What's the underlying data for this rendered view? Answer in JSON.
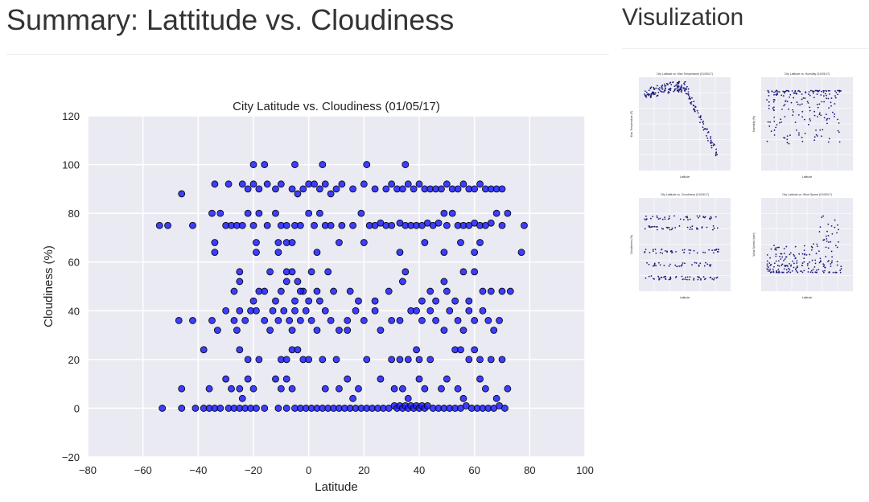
{
  "header": {
    "title": "Summary: Lattitude vs. Cloudiness"
  },
  "sidebar": {
    "title": "Visulization",
    "thumbnails": [
      {
        "name": "temperature",
        "title": "City Latitude vs. Max Temperature (01/05/17)",
        "ylabel": "Max Temperature (F)",
        "xlabel": "Latitude"
      },
      {
        "name": "humidity",
        "title": "City Latitude vs. Humidity (01/05/17)",
        "ylabel": "Humidity (%)",
        "xlabel": "Latitude"
      },
      {
        "name": "cloudiness",
        "title": "City Latitude vs. Cloudiness (01/05/17)",
        "ylabel": "Cloudiness (%)",
        "xlabel": "Latitude"
      },
      {
        "name": "wind-speed",
        "title": "City Latitude vs. Wind Speed (01/05/17)",
        "ylabel": "Wind Speed (mph)",
        "xlabel": "Latitude"
      }
    ]
  },
  "chart_data": {
    "type": "scatter",
    "title": "City Latitude vs. Cloudiness (01/05/17)",
    "xlabel": "Latitude",
    "ylabel": "Cloudiness (%)",
    "xlim": [
      -80,
      100
    ],
    "ylim": [
      -20,
      120
    ],
    "xticks": [
      -80,
      -60,
      -40,
      -20,
      0,
      20,
      40,
      60,
      80,
      100
    ],
    "yticks": [
      -20,
      0,
      20,
      40,
      60,
      80,
      100,
      120
    ],
    "grid": true,
    "style": {
      "background": "#eaeaf2",
      "grid": "#ffffff",
      "marker": "#1f1fff",
      "marker_edge": "#000000"
    },
    "series": [
      {
        "points": [
          [
            -54,
            75
          ],
          [
            -51,
            75
          ],
          [
            -42,
            75
          ],
          [
            -35,
            80
          ],
          [
            -32,
            80
          ],
          [
            -30,
            75
          ],
          [
            -28,
            75
          ],
          [
            -26,
            75
          ],
          [
            -24,
            75
          ],
          [
            -22,
            80
          ],
          [
            -20,
            75
          ],
          [
            -18,
            80
          ],
          [
            -15,
            75
          ],
          [
            -12,
            80
          ],
          [
            -10,
            75
          ],
          [
            -8,
            75
          ],
          [
            -5,
            75
          ],
          [
            -3,
            75
          ],
          [
            0,
            80
          ],
          [
            2,
            75
          ],
          [
            4,
            80
          ],
          [
            6,
            75
          ],
          [
            8,
            75
          ],
          [
            12,
            75
          ],
          [
            16,
            75
          ],
          [
            19,
            80
          ],
          [
            22,
            75
          ],
          [
            24,
            75
          ],
          [
            26,
            76
          ],
          [
            28,
            75
          ],
          [
            30,
            75
          ],
          [
            33,
            76
          ],
          [
            35,
            75
          ],
          [
            37,
            75
          ],
          [
            39,
            75
          ],
          [
            41,
            75
          ],
          [
            43,
            76
          ],
          [
            45,
            75
          ],
          [
            47,
            76
          ],
          [
            49,
            80
          ],
          [
            50,
            75
          ],
          [
            52,
            80
          ],
          [
            54,
            75
          ],
          [
            56,
            75
          ],
          [
            58,
            75
          ],
          [
            60,
            76
          ],
          [
            62,
            75
          ],
          [
            64,
            75
          ],
          [
            66,
            76
          ],
          [
            68,
            80
          ],
          [
            70,
            75
          ],
          [
            72,
            80
          ],
          [
            78,
            75
          ],
          [
            -34,
            64
          ],
          [
            -34,
            68
          ],
          [
            -19,
            64
          ],
          [
            -19,
            68
          ],
          [
            -11,
            64
          ],
          [
            -11,
            68
          ],
          [
            -8,
            68
          ],
          [
            -6,
            68
          ],
          [
            3,
            64
          ],
          [
            11,
            68
          ],
          [
            20,
            68
          ],
          [
            33,
            64
          ],
          [
            42,
            68
          ],
          [
            49,
            64
          ],
          [
            55,
            68
          ],
          [
            60,
            64
          ],
          [
            62,
            68
          ],
          [
            77,
            64
          ],
          [
            -46,
            88
          ],
          [
            -34,
            92
          ],
          [
            -29,
            92
          ],
          [
            -24,
            92
          ],
          [
            -22,
            90
          ],
          [
            -20,
            92
          ],
          [
            -18,
            90
          ],
          [
            -15,
            92
          ],
          [
            -12,
            90
          ],
          [
            -10,
            92
          ],
          [
            -6,
            90
          ],
          [
            -4,
            88
          ],
          [
            -2,
            90
          ],
          [
            0,
            92
          ],
          [
            2,
            92
          ],
          [
            4,
            90
          ],
          [
            6,
            92
          ],
          [
            8,
            88
          ],
          [
            10,
            90
          ],
          [
            12,
            92
          ],
          [
            16,
            90
          ],
          [
            20,
            92
          ],
          [
            24,
            90
          ],
          [
            28,
            90
          ],
          [
            30,
            92
          ],
          [
            32,
            90
          ],
          [
            34,
            90
          ],
          [
            36,
            92
          ],
          [
            38,
            90
          ],
          [
            40,
            92
          ],
          [
            42,
            90
          ],
          [
            44,
            90
          ],
          [
            46,
            90
          ],
          [
            48,
            90
          ],
          [
            50,
            92
          ],
          [
            52,
            90
          ],
          [
            54,
            90
          ],
          [
            56,
            92
          ],
          [
            58,
            90
          ],
          [
            60,
            90
          ],
          [
            62,
            92
          ],
          [
            64,
            90
          ],
          [
            66,
            90
          ],
          [
            68,
            90
          ],
          [
            70,
            90
          ],
          [
            -20,
            100
          ],
          [
            -16,
            100
          ],
          [
            -5,
            100
          ],
          [
            5,
            100
          ],
          [
            21,
            100
          ],
          [
            35,
            100
          ],
          [
            -25,
            56
          ],
          [
            -16,
            48
          ],
          [
            -14,
            56
          ],
          [
            -10,
            48
          ],
          [
            -8,
            56
          ],
          [
            -6,
            56
          ],
          [
            -4,
            52
          ],
          [
            -2,
            48
          ],
          [
            1,
            56
          ],
          [
            3,
            48
          ],
          [
            7,
            56
          ],
          [
            15,
            48
          ],
          [
            29,
            48
          ],
          [
            35,
            56
          ],
          [
            44,
            48
          ],
          [
            49,
            52
          ],
          [
            56,
            56
          ],
          [
            60,
            56
          ],
          [
            66,
            48
          ],
          [
            -27,
            48
          ],
          [
            -25,
            52
          ],
          [
            -20,
            44
          ],
          [
            -18,
            48
          ],
          [
            -12,
            44
          ],
          [
            -8,
            52
          ],
          [
            -5,
            44
          ],
          [
            -3,
            48
          ],
          [
            0,
            44
          ],
          [
            4,
            44
          ],
          [
            9,
            48
          ],
          [
            18,
            44
          ],
          [
            24,
            44
          ],
          [
            34,
            52
          ],
          [
            41,
            44
          ],
          [
            46,
            44
          ],
          [
            50,
            48
          ],
          [
            53,
            44
          ],
          [
            58,
            44
          ],
          [
            63,
            48
          ],
          [
            70,
            48
          ],
          [
            73,
            48
          ],
          [
            -47,
            36
          ],
          [
            -42,
            36
          ],
          [
            -35,
            36
          ],
          [
            -30,
            40
          ],
          [
            -27,
            36
          ],
          [
            -25,
            40
          ],
          [
            -23,
            36
          ],
          [
            -21,
            40
          ],
          [
            -19,
            40
          ],
          [
            -16,
            36
          ],
          [
            -13,
            40
          ],
          [
            -11,
            36
          ],
          [
            -9,
            40
          ],
          [
            -7,
            36
          ],
          [
            -5,
            40
          ],
          [
            -3,
            36
          ],
          [
            -1,
            40
          ],
          [
            1,
            36
          ],
          [
            3,
            32
          ],
          [
            6,
            40
          ],
          [
            8,
            36
          ],
          [
            11,
            32
          ],
          [
            14,
            36
          ],
          [
            17,
            40
          ],
          [
            20,
            36
          ],
          [
            24,
            40
          ],
          [
            26,
            32
          ],
          [
            30,
            36
          ],
          [
            33,
            36
          ],
          [
            37,
            40
          ],
          [
            39,
            40
          ],
          [
            41,
            36
          ],
          [
            44,
            40
          ],
          [
            46,
            36
          ],
          [
            49,
            32
          ],
          [
            51,
            40
          ],
          [
            54,
            36
          ],
          [
            56,
            32
          ],
          [
            58,
            40
          ],
          [
            60,
            36
          ],
          [
            63,
            40
          ],
          [
            65,
            36
          ],
          [
            67,
            32
          ],
          [
            69,
            36
          ],
          [
            -33,
            32
          ],
          [
            -26,
            32
          ],
          [
            -14,
            32
          ],
          [
            -6,
            32
          ],
          [
            14,
            32
          ],
          [
            -38,
            24
          ],
          [
            -25,
            24
          ],
          [
            -22,
            20
          ],
          [
            -18,
            20
          ],
          [
            -10,
            20
          ],
          [
            -8,
            20
          ],
          [
            -6,
            24
          ],
          [
            -4,
            24
          ],
          [
            -2,
            20
          ],
          [
            0,
            20
          ],
          [
            5,
            20
          ],
          [
            10,
            20
          ],
          [
            21,
            20
          ],
          [
            30,
            20
          ],
          [
            33,
            20
          ],
          [
            36,
            20
          ],
          [
            39,
            24
          ],
          [
            40,
            20
          ],
          [
            44,
            20
          ],
          [
            53,
            24
          ],
          [
            55,
            24
          ],
          [
            58,
            20
          ],
          [
            60,
            24
          ],
          [
            62,
            20
          ],
          [
            66,
            20
          ],
          [
            70,
            20
          ],
          [
            -30,
            12
          ],
          [
            -28,
            8
          ],
          [
            -25,
            8
          ],
          [
            -22,
            12
          ],
          [
            -20,
            8
          ],
          [
            -12,
            12
          ],
          [
            -10,
            8
          ],
          [
            -8,
            12
          ],
          [
            -6,
            8
          ],
          [
            6,
            8
          ],
          [
            11,
            8
          ],
          [
            14,
            12
          ],
          [
            18,
            8
          ],
          [
            26,
            12
          ],
          [
            31,
            8
          ],
          [
            34,
            8
          ],
          [
            40,
            12
          ],
          [
            42,
            8
          ],
          [
            48,
            8
          ],
          [
            50,
            12
          ],
          [
            54,
            8
          ],
          [
            62,
            12
          ],
          [
            64,
            8
          ],
          [
            68,
            4
          ],
          [
            72,
            8
          ],
          [
            -46,
            8
          ],
          [
            -36,
            8
          ],
          [
            -24,
            4
          ],
          [
            16,
            4
          ],
          [
            36,
            4
          ],
          [
            56,
            4
          ],
          [
            -53,
            0
          ],
          [
            -46,
            0
          ],
          [
            -41,
            0
          ],
          [
            -38,
            0
          ],
          [
            -36,
            0
          ],
          [
            -34,
            0
          ],
          [
            -32,
            0
          ],
          [
            -29,
            0
          ],
          [
            -27,
            0
          ],
          [
            -25,
            0
          ],
          [
            -23,
            0
          ],
          [
            -21,
            0
          ],
          [
            -19,
            0
          ],
          [
            -16,
            0
          ],
          [
            -11,
            0
          ],
          [
            -8,
            0
          ],
          [
            -5,
            0
          ],
          [
            -3,
            0
          ],
          [
            -1,
            0
          ],
          [
            1,
            0
          ],
          [
            3,
            0
          ],
          [
            5,
            0
          ],
          [
            7,
            0
          ],
          [
            9,
            0
          ],
          [
            11,
            0
          ],
          [
            13,
            0
          ],
          [
            15,
            0
          ],
          [
            17,
            0
          ],
          [
            19,
            0
          ],
          [
            21,
            0
          ],
          [
            23,
            0
          ],
          [
            25,
            0
          ],
          [
            27,
            0
          ],
          [
            29,
            0
          ],
          [
            31,
            1
          ],
          [
            32,
            0
          ],
          [
            33,
            1
          ],
          [
            34,
            0
          ],
          [
            35,
            1
          ],
          [
            36,
            0
          ],
          [
            37,
            1
          ],
          [
            38,
            0
          ],
          [
            39,
            1
          ],
          [
            40,
            0
          ],
          [
            41,
            1
          ],
          [
            42,
            0
          ],
          [
            43,
            1
          ],
          [
            45,
            0
          ],
          [
            47,
            0
          ],
          [
            49,
            0
          ],
          [
            51,
            0
          ],
          [
            53,
            0
          ],
          [
            55,
            0
          ],
          [
            57,
            1
          ],
          [
            59,
            0
          ],
          [
            61,
            0
          ],
          [
            63,
            0
          ],
          [
            65,
            0
          ],
          [
            67,
            0
          ],
          [
            69,
            1
          ],
          [
            71,
            0
          ]
        ]
      }
    ]
  }
}
